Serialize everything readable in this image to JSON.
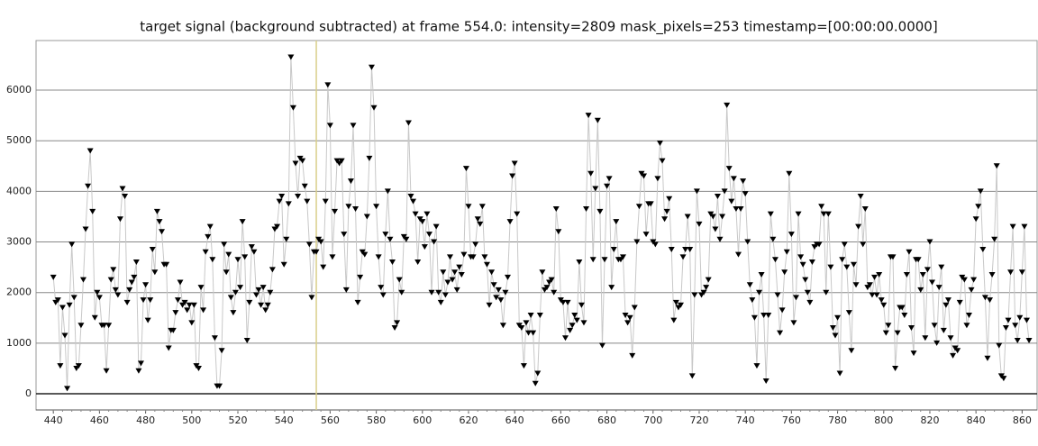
{
  "chart_data": {
    "type": "line",
    "title": "target signal (background subtracted) at frame 554.0: intensity=2809 mask_pixels=253 timestamp=[00:00:00.0000]",
    "x": [
      440,
      441,
      442,
      443,
      444,
      445,
      446,
      447,
      448,
      449,
      450,
      451,
      452,
      453,
      454,
      455,
      456,
      457,
      458,
      459,
      460,
      461,
      462,
      463,
      464,
      465,
      466,
      467,
      468,
      469,
      470,
      471,
      472,
      473,
      474,
      475,
      476,
      477,
      478,
      479,
      480,
      481,
      482,
      483,
      484,
      485,
      486,
      487,
      488,
      489,
      490,
      491,
      492,
      493,
      494,
      495,
      496,
      497,
      498,
      499,
      500,
      501,
      502,
      503,
      504,
      505,
      506,
      507,
      508,
      509,
      510,
      511,
      512,
      513,
      514,
      515,
      516,
      517,
      518,
      519,
      520,
      521,
      522,
      523,
      524,
      525,
      526,
      527,
      528,
      529,
      530,
      531,
      532,
      533,
      534,
      535,
      536,
      537,
      538,
      539,
      540,
      541,
      542,
      543,
      544,
      545,
      546,
      547,
      548,
      549,
      550,
      551,
      552,
      553,
      554,
      555,
      556,
      557,
      558,
      559,
      560,
      561,
      562,
      563,
      564,
      565,
      566,
      567,
      568,
      569,
      570,
      571,
      572,
      573,
      574,
      575,
      576,
      577,
      578,
      579,
      580,
      581,
      582,
      583,
      584,
      585,
      586,
      587,
      588,
      589,
      590,
      591,
      592,
      593,
      594,
      595,
      596,
      597,
      598,
      599,
      600,
      601,
      602,
      603,
      604,
      605,
      606,
      607,
      608,
      609,
      610,
      611,
      612,
      613,
      614,
      615,
      616,
      617,
      618,
      619,
      620,
      621,
      622,
      623,
      624,
      625,
      626,
      627,
      628,
      629,
      630,
      631,
      632,
      633,
      634,
      635,
      636,
      637,
      638,
      639,
      640,
      641,
      642,
      643,
      644,
      645,
      646,
      647,
      648,
      649,
      650,
      651,
      652,
      653,
      654,
      655,
      656,
      657,
      658,
      659,
      660,
      661,
      662,
      663,
      664,
      665,
      666,
      667,
      668,
      669,
      670,
      671,
      672,
      673,
      674,
      675,
      676,
      677,
      678,
      679,
      680,
      681,
      682,
      683,
      684,
      685,
      686,
      687,
      688,
      689,
      690,
      691,
      692,
      693,
      694,
      695,
      696,
      697,
      698,
      699,
      700,
      701,
      702,
      703,
      704,
      705,
      706,
      707,
      708,
      709,
      710,
      711,
      712,
      713,
      714,
      715,
      716,
      717,
      718,
      719,
      720,
      721,
      722,
      723,
      724,
      725,
      726,
      727,
      728,
      729,
      730,
      731,
      732,
      733,
      734,
      735,
      736,
      737,
      738,
      739,
      740,
      741,
      742,
      743,
      744,
      745,
      746,
      747,
      748,
      749,
      750,
      751,
      752,
      753,
      754,
      755,
      756,
      757,
      758,
      759,
      760,
      761,
      762,
      763,
      764,
      765,
      766,
      767,
      768,
      769,
      770,
      771,
      772,
      773,
      774,
      775,
      776,
      777,
      778,
      779,
      780,
      781,
      782,
      783,
      784,
      785,
      786,
      787,
      788,
      789,
      790,
      791,
      792,
      793,
      794,
      795,
      796,
      797,
      798,
      799,
      800,
      801,
      802,
      803,
      804,
      805,
      806,
      807,
      808,
      809,
      810,
      811,
      812,
      813,
      814,
      815,
      816,
      817,
      818,
      819,
      820,
      821,
      822,
      823,
      824,
      825,
      826,
      827,
      828,
      829,
      830,
      831,
      832,
      833,
      834,
      835,
      836,
      837,
      838,
      839,
      840,
      841,
      842,
      843,
      844,
      845,
      846,
      847,
      848,
      849,
      850,
      851,
      852,
      853,
      854,
      855,
      856,
      857,
      858,
      859,
      860,
      861,
      862,
      863
    ],
    "values": [
      2300,
      1800,
      1850,
      550,
      1700,
      1150,
      100,
      1750,
      2950,
      1900,
      500,
      550,
      1350,
      2250,
      3250,
      4100,
      4800,
      3600,
      1500,
      2000,
      1900,
      1350,
      1350,
      450,
      1350,
      2250,
      2450,
      2050,
      1950,
      3450,
      4050,
      3900,
      1800,
      2050,
      2200,
      2300,
      2600,
      450,
      600,
      1850,
      2150,
      1450,
      1850,
      2850,
      2400,
      3600,
      3400,
      3200,
      2550,
      2550,
      900,
      1250,
      1250,
      1600,
      1850,
      2200,
      1750,
      1800,
      1650,
      1750,
      1400,
      1750,
      550,
      500,
      2100,
      1650,
      2800,
      3100,
      3300,
      2650,
      1100,
      150,
      150,
      850,
      2950,
      2400,
      2750,
      1900,
      1600,
      2000,
      2650,
      2100,
      3400,
      2700,
      1050,
      1800,
      2900,
      2800,
      1950,
      2050,
      1750,
      2100,
      1650,
      1750,
      2000,
      2450,
      3250,
      3300,
      3800,
      3900,
      2550,
      3050,
      3750,
      6650,
      5650,
      4550,
      3900,
      4650,
      4600,
      4100,
      3800,
      2950,
      1900,
      2800,
      2800,
      3050,
      3000,
      2500,
      3800,
      6100,
      5300,
      2700,
      3600,
      4600,
      4550,
      4600,
      3150,
      2050,
      3700,
      4200,
      5300,
      3650,
      1800,
      2300,
      2800,
      2750,
      3500,
      4650,
      6450,
      5650,
      3700,
      2700,
      2100,
      1950,
      3150,
      4000,
      3050,
      2600,
      1300,
      1400,
      2250,
      2000,
      3100,
      3050,
      5350,
      3900,
      3800,
      3550,
      2600,
      3450,
      3400,
      2900,
      3550,
      3150,
      2000,
      3000,
      3300,
      2000,
      1800,
      2400,
      1950,
      2200,
      2700,
      2250,
      2400,
      2050,
      2500,
      2350,
      2750,
      4450,
      3700,
      2700,
      2700,
      2950,
      3450,
      3350,
      3700,
      2700,
      2550,
      1750,
      2400,
      2150,
      1900,
      2050,
      1850,
      1350,
      2000,
      2300,
      3400,
      4300,
      4550,
      3550,
      1350,
      1300,
      550,
      1400,
      1200,
      1550,
      1200,
      200,
      400,
      1550,
      2400,
      2050,
      2100,
      2200,
      2250,
      2000,
      3650,
      3200,
      1850,
      1800,
      1100,
      1800,
      1250,
      1350,
      1550,
      1450,
      2600,
      1750,
      1400,
      3650,
      5500,
      4350,
      2650,
      4050,
      5400,
      3600,
      950,
      2650,
      4100,
      4250,
      2100,
      2850,
      3400,
      2650,
      2650,
      2700,
      1550,
      1400,
      1500,
      750,
      1700,
      3000,
      3700,
      4350,
      4300,
      3150,
      3750,
      3750,
      3000,
      2950,
      4250,
      4950,
      4600,
      3450,
      3600,
      3850,
      2850,
      1450,
      1800,
      1700,
      1750,
      2700,
      2850,
      3500,
      2850,
      350,
      1950,
      4000,
      3350,
      1950,
      2000,
      2100,
      2250,
      3550,
      3500,
      3250,
      3900,
      3050,
      3500,
      4000,
      5700,
      4450,
      3800,
      4250,
      3650,
      2750,
      3650,
      4200,
      3950,
      3000,
      2150,
      1850,
      1500,
      550,
      2000,
      2350,
      1550,
      250,
      1550,
      3550,
      3050,
      2650,
      1950,
      1200,
      1650,
      2400,
      2800,
      4350,
      3150,
      1400,
      1900,
      3550,
      2700,
      2550,
      2250,
      2000,
      1800,
      2600,
      2900,
      2950,
      2950,
      3700,
      3550,
      2000,
      3550,
      2500,
      1300,
      1150,
      1500,
      400,
      2650,
      2950,
      2500,
      1600,
      850,
      2550,
      2150,
      3300,
      3900,
      2950,
      3650,
      2100,
      2150,
      1950,
      2300,
      1950,
      2350,
      1850,
      1750,
      1200,
      1350,
      2700,
      2700,
      500,
      1200,
      1700,
      1700,
      1550,
      2350,
      2800,
      1300,
      800,
      2650,
      2650,
      2050,
      2350,
      1100,
      2450,
      3000,
      2200,
      1350,
      1000,
      2100,
      2500,
      1250,
      1750,
      1850,
      1100,
      750,
      900,
      850,
      1800,
      2300,
      2250,
      1350,
      1550,
      2050,
      2250,
      3450,
      3700,
      4000,
      2850,
      1900,
      700,
      1850,
      2350,
      3050,
      4500,
      950,
      350,
      300,
      1300,
      1450,
      2400,
      3300,
      1350,
      1050,
      1500,
      2400,
      3300,
      1450,
      1050
    ],
    "line_color": "#c8c8c8",
    "marker_color": "#000000",
    "vline_x": 554,
    "vline_color": "#d9cf8a",
    "xlim": [
      432.5,
      866.5
    ],
    "ylim": [
      -320,
      6980
    ],
    "xticks": [
      440,
      460,
      480,
      500,
      520,
      540,
      560,
      580,
      600,
      620,
      640,
      660,
      680,
      700,
      720,
      740,
      760,
      780,
      800,
      820,
      840,
      860
    ],
    "yticks": [
      0,
      1000,
      2000,
      3000,
      4000,
      5000,
      6000
    ],
    "grid": true
  }
}
